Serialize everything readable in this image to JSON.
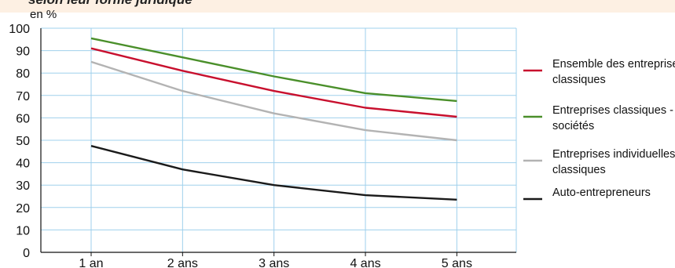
{
  "chart_data": {
    "type": "line",
    "title": "selon leur forme juridique",
    "unit_label": "en %",
    "categories": [
      "1 an",
      "2 ans",
      "3 ans",
      "4 ans",
      "5 ans"
    ],
    "ylim": [
      0,
      100
    ],
    "yticks": [
      0,
      10,
      20,
      30,
      40,
      50,
      60,
      70,
      80,
      90,
      100
    ],
    "grid": true,
    "legend_position": "right",
    "series": [
      {
        "name": "Ensemble des entreprises classiques",
        "legend_lines": [
          "Ensemble des entreprises",
          "classiques"
        ],
        "color": "#c8102e",
        "values": [
          91,
          81,
          72,
          64.5,
          60.5
        ]
      },
      {
        "name": "Entreprises classiques - sociétés",
        "legend_lines": [
          "Entreprises classiques -",
          "sociétés"
        ],
        "color": "#4a8f2a",
        "values": [
          95.5,
          87,
          78.5,
          71,
          67.5
        ]
      },
      {
        "name": "Entreprises individuelles classiques",
        "legend_lines": [
          "Entreprises individuelles",
          "classiques"
        ],
        "color": "#b3b3b3",
        "values": [
          85,
          72,
          62,
          54.5,
          50
        ]
      },
      {
        "name": "Auto-entrepreneurs",
        "legend_lines": [
          "Auto-entrepreneurs"
        ],
        "color": "#1a1a1a",
        "values": [
          47.5,
          37,
          30,
          25.5,
          23.5
        ]
      }
    ]
  }
}
